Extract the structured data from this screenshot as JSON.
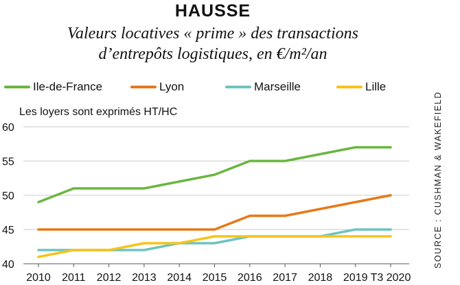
{
  "title": "HAUSSE",
  "subtitle_line1": "Valeurs locatives « prime » des transactions",
  "subtitle_line2": "d’entrepôts logistiques, en €/m²/an",
  "note": "Les loyers sont exprimés HT/HC",
  "source": "SOURCE : CUSHMAN & WAKEFIELD",
  "chart_data": {
    "type": "line",
    "categories": [
      "2010",
      "2011",
      "2012",
      "2013",
      "2014",
      "2015",
      "2016",
      "2017",
      "2018",
      "2019",
      "T3 2020"
    ],
    "ylim": [
      40,
      60
    ],
    "yticks": [
      40,
      45,
      50,
      55,
      60
    ],
    "grid": true,
    "legend_position": "top",
    "series": [
      {
        "name": "Ile-de-France",
        "color": "#6ab63e",
        "values": [
          49,
          51,
          51,
          51,
          52,
          53,
          55,
          55,
          56,
          57,
          57
        ]
      },
      {
        "name": "Lyon",
        "color": "#e87817",
        "values": [
          45,
          45,
          45,
          45,
          45,
          45,
          47,
          47,
          48,
          49,
          50
        ]
      },
      {
        "name": "Marseille",
        "color": "#6cc4bf",
        "values": [
          42,
          42,
          42,
          42,
          43,
          43,
          44,
          44,
          44,
          45,
          45
        ]
      },
      {
        "name": "Lille",
        "color": "#f7c31a",
        "values": [
          41,
          42,
          42,
          43,
          43,
          44,
          44,
          44,
          44,
          44,
          44
        ]
      }
    ]
  }
}
